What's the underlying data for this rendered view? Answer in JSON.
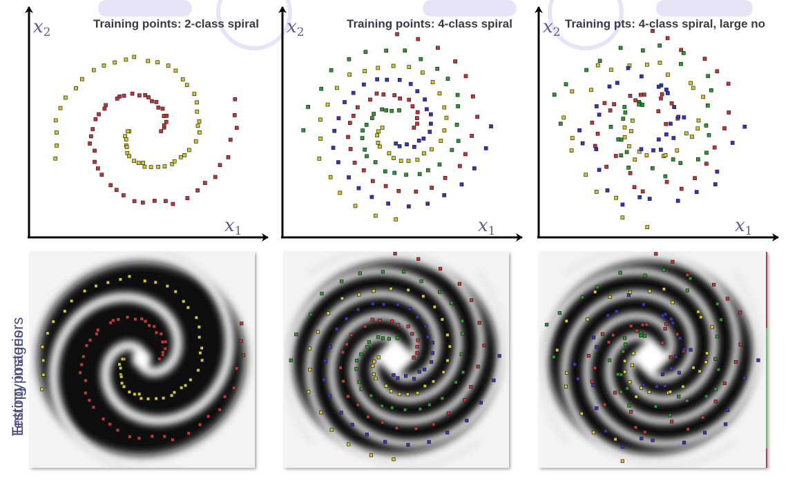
{
  "side_labels": [
    "Testing posteriors",
    "Entropy images"
  ],
  "panels": [
    {
      "title": "Training points: 2-class spiral",
      "classes": 2,
      "turns": 1.05,
      "noise": 0.0
    },
    {
      "title": "Training points: 4-class spiral",
      "classes": 4,
      "turns": 1.25,
      "noise": 0.0
    },
    {
      "title": "Training pts: 4-class spiral, large no",
      "classes": 4,
      "turns": 1.25,
      "noise": 0.7
    }
  ],
  "axis_labels": {
    "x": "x",
    "x_sub": "1",
    "y": "x",
    "y_sub": "2"
  },
  "class_colors": {
    "2class": [
      "#c83434",
      "#d2c828"
    ],
    "4class": [
      "#c83434",
      "#2c9a2c",
      "#d2c828",
      "#3434c4"
    ]
  }
}
